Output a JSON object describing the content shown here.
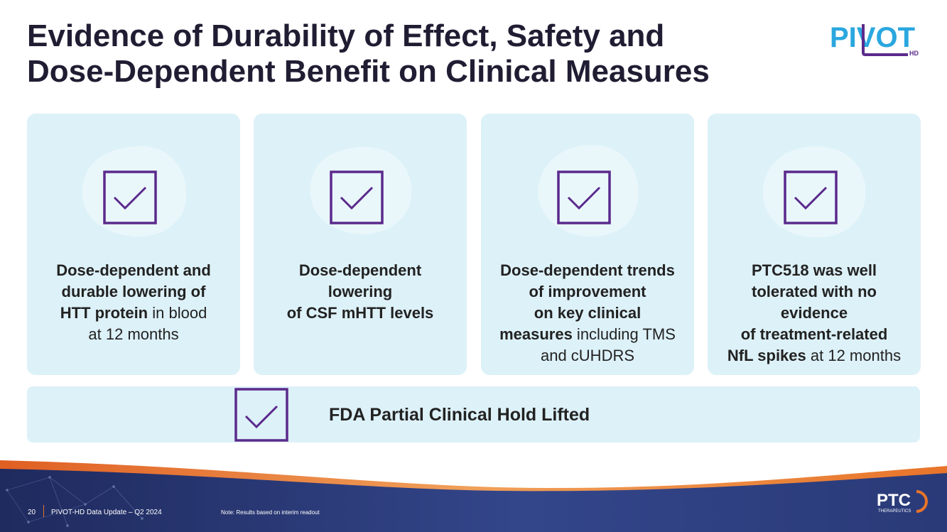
{
  "slide": {
    "title_line1": "Evidence of Durability of Effect, Safety and",
    "title_line2": "Dose-Dependent Benefit on Clinical Measures"
  },
  "logo_pivot": {
    "main": "PIVOT",
    "sub": "HD"
  },
  "cards": [
    {
      "lines": [
        [
          {
            "t": "Dose-dependent and",
            "b": true
          }
        ],
        [
          {
            "t": "durable lowering of",
            "b": true
          }
        ],
        [
          {
            "t": "HTT protein",
            "b": true
          },
          {
            "t": " in blood",
            "b": false
          }
        ],
        [
          {
            "t": "at 12 months",
            "b": false
          }
        ]
      ]
    },
    {
      "lines": [
        [
          {
            "t": "Dose-dependent",
            "b": true
          }
        ],
        [
          {
            "t": "lowering",
            "b": true
          }
        ],
        [
          {
            "t": "of CSF mHTT levels",
            "b": true
          }
        ]
      ]
    },
    {
      "lines": [
        [
          {
            "t": "Dose-dependent trends",
            "b": true
          }
        ],
        [
          {
            "t": "of improvement",
            "b": true
          }
        ],
        [
          {
            "t": "on key clinical",
            "b": true
          }
        ],
        [
          {
            "t": "measures",
            "b": true
          },
          {
            "t": " including TMS",
            "b": false
          }
        ],
        [
          {
            "t": "and cUHDRS",
            "b": false
          }
        ]
      ]
    },
    {
      "lines": [
        [
          {
            "t": "PTC518 was well",
            "b": true
          }
        ],
        [
          {
            "t": "tolerated with no",
            "b": true
          }
        ],
        [
          {
            "t": "evidence",
            "b": true
          }
        ],
        [
          {
            "t": "of treatment-related",
            "b": true
          }
        ],
        [
          {
            "t": "NfL spikes",
            "b": true
          },
          {
            "t": " at 12 months",
            "b": false
          }
        ]
      ]
    }
  ],
  "banner": {
    "label": "FDA Partial Clinical Hold Lifted"
  },
  "footer": {
    "page_number": "20",
    "deck_title": "PIVOT-HD Data Update – Q2 2024",
    "note": "Note: Results based on interim readout"
  },
  "logo_ptc": {
    "main": "PTC",
    "sub": "THERAPEUTICS"
  },
  "colors": {
    "title": "#201d33",
    "card_bg": "#ddf1f8",
    "check_purple": "#5b2a8c",
    "pivot_blue": "#2aa7df",
    "footer_navy": "#2a3a78",
    "footer_orange": "#e8742a"
  }
}
